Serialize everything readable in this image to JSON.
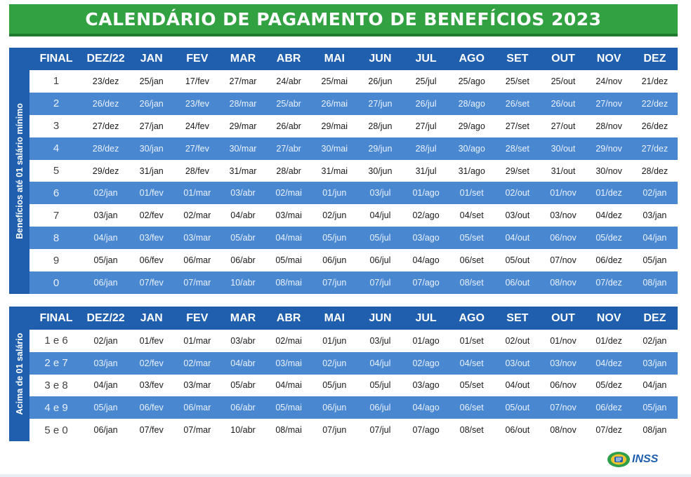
{
  "title": "CALENDÁRIO DE PAGAMENTO DE BENEFÍCIOS 2023",
  "headers": [
    "FINAL",
    "DEZ/22",
    "JAN",
    "FEV",
    "MAR",
    "ABR",
    "MAI",
    "JUN",
    "JUL",
    "AGO",
    "SET",
    "OUT",
    "NOV",
    "DEZ"
  ],
  "table1": {
    "side_label": "Benefícios até 01 salário mínimo",
    "rows": [
      [
        "1",
        "23/dez",
        "25/jan",
        "17/fev",
        "27/mar",
        "24/abr",
        "25/mai",
        "26/jun",
        "25/jul",
        "25/ago",
        "25/set",
        "25/out",
        "24/nov",
        "21/dez"
      ],
      [
        "2",
        "26/dez",
        "26/jan",
        "23/fev",
        "28/mar",
        "25/abr",
        "26/mai",
        "27/jun",
        "26/jul",
        "28/ago",
        "26/set",
        "26/out",
        "27/nov",
        "22/dez"
      ],
      [
        "3",
        "27/dez",
        "27/jan",
        "24/fev",
        "29/mar",
        "26/abr",
        "29/mai",
        "28/jun",
        "27/jul",
        "29/ago",
        "27/set",
        "27/out",
        "28/nov",
        "26/dez"
      ],
      [
        "4",
        "28/dez",
        "30/jan",
        "27/fev",
        "30/mar",
        "27/abr",
        "30/mai",
        "29/jun",
        "28/jul",
        "30/ago",
        "28/set",
        "30/out",
        "29/nov",
        "27/dez"
      ],
      [
        "5",
        "29/dez",
        "31/jan",
        "28/fev",
        "31/mar",
        "28/abr",
        "31/mai",
        "30/jun",
        "31/jul",
        "31/ago",
        "29/set",
        "31/out",
        "30/nov",
        "28/dez"
      ],
      [
        "6",
        "02/jan",
        "01/fev",
        "01/mar",
        "03/abr",
        "02/mai",
        "01/jun",
        "03/jul",
        "01/ago",
        "01/set",
        "02/out",
        "01/nov",
        "01/dez",
        "02/jan"
      ],
      [
        "7",
        "03/jan",
        "02/fev",
        "02/mar",
        "04/abr",
        "03/mai",
        "02/jun",
        "04/jul",
        "02/ago",
        "04/set",
        "03/out",
        "03/nov",
        "04/dez",
        "03/jan"
      ],
      [
        "8",
        "04/jan",
        "03/fev",
        "03/mar",
        "05/abr",
        "04/mai",
        "05/jun",
        "05/jul",
        "03/ago",
        "05/set",
        "04/out",
        "06/nov",
        "05/dez",
        "04/jan"
      ],
      [
        "9",
        "05/jan",
        "06/fev",
        "06/mar",
        "06/abr",
        "05/mai",
        "06/jun",
        "06/jul",
        "04/ago",
        "06/set",
        "05/out",
        "07/nov",
        "06/dez",
        "05/jan"
      ],
      [
        "0",
        "06/jan",
        "07/fev",
        "07/mar",
        "10/abr",
        "08/mai",
        "07/jun",
        "07/jul",
        "07/ago",
        "08/set",
        "06/out",
        "08/nov",
        "07/dez",
        "08/jan"
      ]
    ]
  },
  "table2": {
    "side_label": "Acima de 01 salário",
    "rows": [
      [
        "1 e 6",
        "02/jan",
        "01/fev",
        "01/mar",
        "03/abr",
        "02/mai",
        "01/jun",
        "03/jul",
        "01/ago",
        "01/set",
        "02/out",
        "01/nov",
        "01/dez",
        "02/jan"
      ],
      [
        "2 e 7",
        "03/jan",
        "02/fev",
        "02/mar",
        "04/abr",
        "03/mai",
        "02/jun",
        "04/jul",
        "02/ago",
        "04/set",
        "03/out",
        "03/nov",
        "04/dez",
        "03/jan"
      ],
      [
        "3 e 8",
        "04/jan",
        "03/fev",
        "03/mar",
        "05/abr",
        "04/mai",
        "05/jun",
        "05/jul",
        "03/ago",
        "05/set",
        "04/out",
        "06/nov",
        "05/dez",
        "04/jan"
      ],
      [
        "4 e 9",
        "05/jan",
        "06/fev",
        "06/mar",
        "06/abr",
        "05/mai",
        "06/jun",
        "06/jul",
        "04/ago",
        "06/set",
        "05/out",
        "07/nov",
        "06/dez",
        "05/jan"
      ],
      [
        "5 e 0",
        "06/jan",
        "07/fev",
        "07/mar",
        "10/abr",
        "08/mai",
        "07/jun",
        "07/jul",
        "07/ago",
        "08/set",
        "06/out",
        "08/nov",
        "07/dez",
        "08/jan"
      ]
    ]
  },
  "logo": {
    "text": "INSS",
    "icon": "inss-logo-icon"
  },
  "colors": {
    "banner_green": "#32a142",
    "header_blue": "#1f5fae",
    "row_blue": "#4a87d1",
    "row_white": "#ffffff"
  }
}
